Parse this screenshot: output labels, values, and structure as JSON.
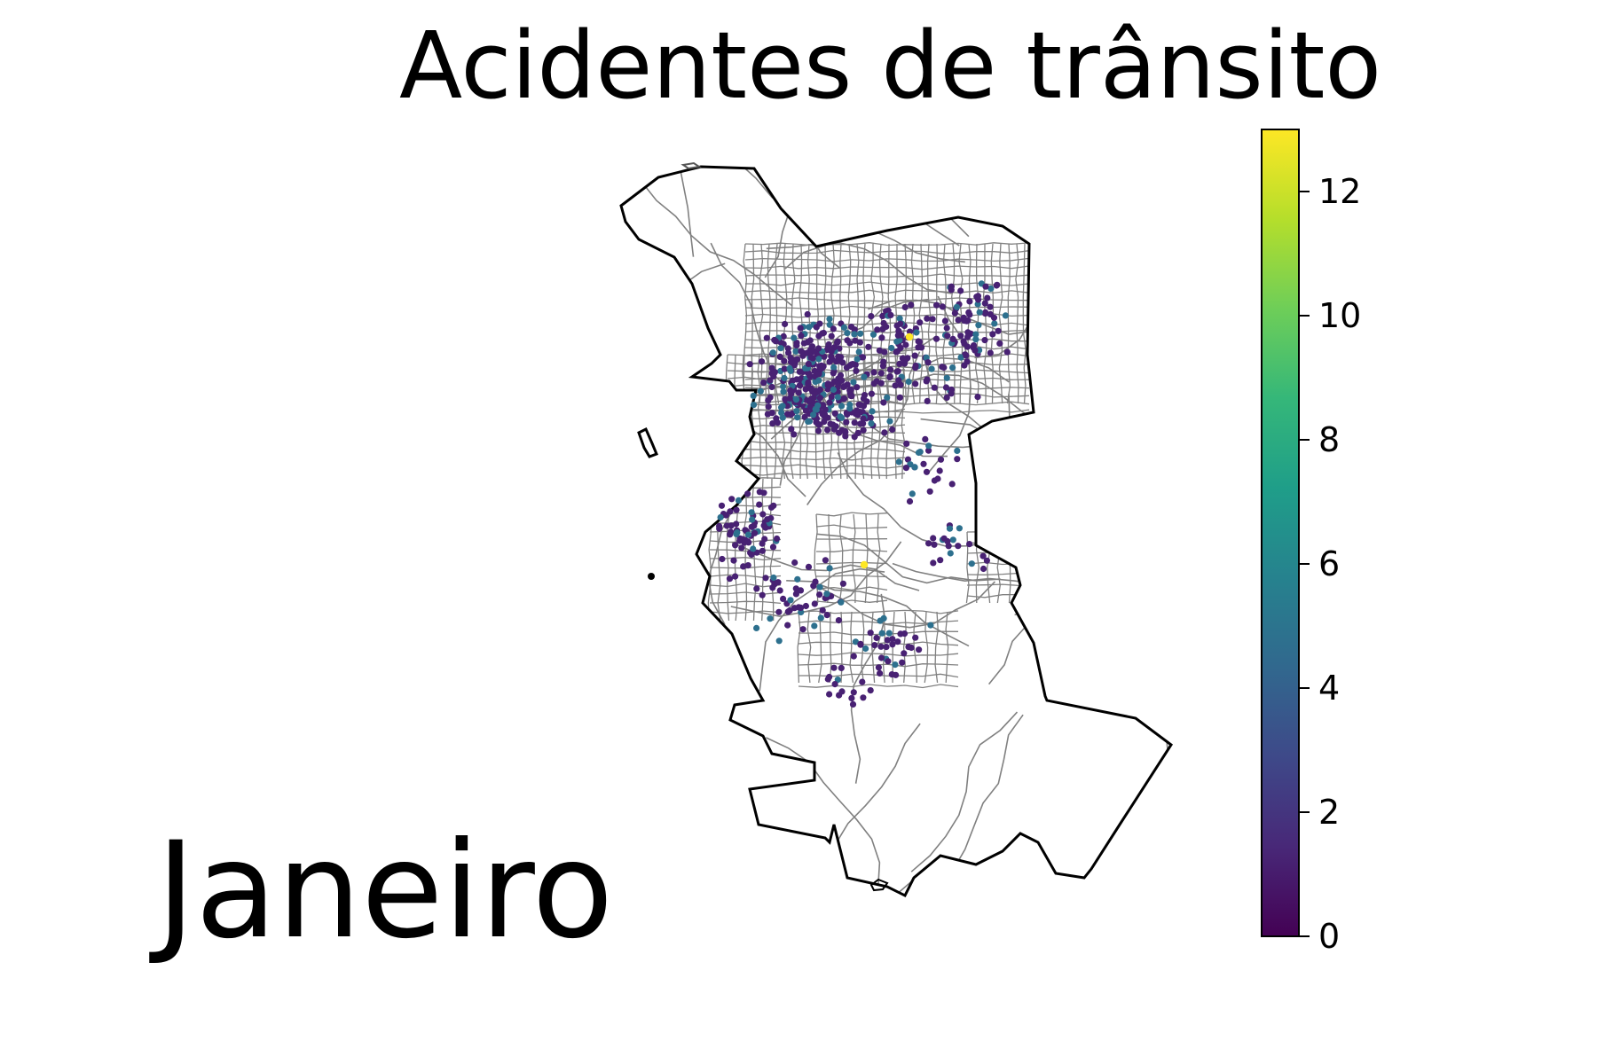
{
  "title": "Acidentes de trânsito",
  "month": "Janeiro",
  "colorbar": {
    "min": 0,
    "max": 13,
    "ticks": [
      "0",
      "2",
      "4",
      "6",
      "8",
      "10",
      "12"
    ],
    "colormap": "viridis",
    "colors": [
      "#440154",
      "#482878",
      "#3e4989",
      "#31688e",
      "#26828e",
      "#1f9e89",
      "#35b779",
      "#6ece58",
      "#b5de2b",
      "#fde725"
    ]
  },
  "map": {
    "boundary_color": "#000000",
    "road_color": "#808080",
    "point_colors": {
      "low": "#482173",
      "mid": "#2d708e",
      "high": "#fde725"
    }
  }
}
